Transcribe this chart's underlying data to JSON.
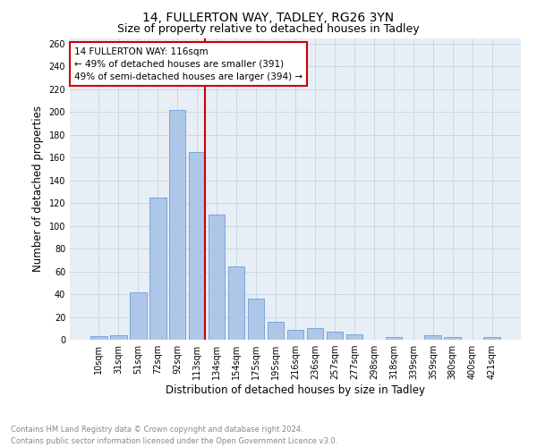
{
  "title": "14, FULLERTON WAY, TADLEY, RG26 3YN",
  "subtitle": "Size of property relative to detached houses in Tadley",
  "xlabel": "Distribution of detached houses by size in Tadley",
  "ylabel": "Number of detached properties",
  "categories": [
    "10sqm",
    "31sqm",
    "51sqm",
    "72sqm",
    "92sqm",
    "113sqm",
    "134sqm",
    "154sqm",
    "175sqm",
    "195sqm",
    "216sqm",
    "236sqm",
    "257sqm",
    "277sqm",
    "298sqm",
    "318sqm",
    "339sqm",
    "359sqm",
    "380sqm",
    "400sqm",
    "421sqm"
  ],
  "values": [
    3,
    4,
    42,
    125,
    202,
    165,
    110,
    64,
    36,
    16,
    9,
    10,
    7,
    5,
    0,
    2,
    0,
    4,
    2,
    0,
    2
  ],
  "bar_color": "#aec6e8",
  "bar_edge_color": "#6a9fd8",
  "vline_x_index": 5,
  "vline_color": "#cc0000",
  "annotation_line1": "14 FULLERTON WAY: 116sqm",
  "annotation_line2": "← 49% of detached houses are smaller (391)",
  "annotation_line3": "49% of semi-detached houses are larger (394) →",
  "annotation_box_color": "#cc0000",
  "ylim": [
    0,
    265
  ],
  "yticks": [
    0,
    20,
    40,
    60,
    80,
    100,
    120,
    140,
    160,
    180,
    200,
    220,
    240,
    260
  ],
  "grid_color": "#c8d8e8",
  "background_color": "#e8eef5",
  "footer_line1": "Contains HM Land Registry data © Crown copyright and database right 2024.",
  "footer_line2": "Contains public sector information licensed under the Open Government Licence v3.0.",
  "title_fontsize": 10,
  "subtitle_fontsize": 9,
  "tick_fontsize": 7,
  "ylabel_fontsize": 8.5,
  "xlabel_fontsize": 8.5,
  "footer_fontsize": 6,
  "annotation_fontsize": 7.5
}
